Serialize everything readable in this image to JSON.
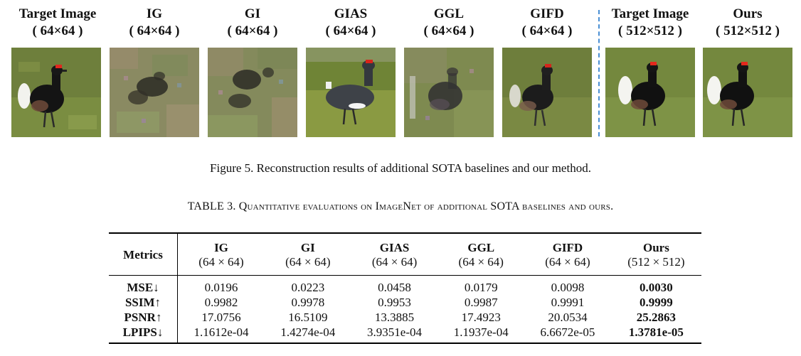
{
  "figure": {
    "columns": [
      {
        "name": "Target Image",
        "size": "( 64×64 )",
        "kind": "target"
      },
      {
        "name": "IG",
        "size": "( 64×64 )",
        "kind": "noisy"
      },
      {
        "name": "GI",
        "size": "( 64×64 )",
        "kind": "noisy"
      },
      {
        "name": "GIAS",
        "size": "( 64×64 )",
        "kind": "gias"
      },
      {
        "name": "GGL",
        "size": "( 64×64 )",
        "kind": "ggl"
      },
      {
        "name": "GIFD",
        "size": "( 64×64 )",
        "kind": "gifd"
      },
      {
        "name": "Target Image",
        "size": "( 512×512 )",
        "kind": "target"
      },
      {
        "name": "Ours",
        "size": "( 512×512 )",
        "kind": "target"
      }
    ],
    "caption": "Figure 5. Reconstruction results of additional SOTA baselines and our method."
  },
  "table": {
    "caption_prefix": "TABLE 3. ",
    "caption_text": "Quantitative evaluations on ImageNet of additional SOTA baselines and ours.",
    "metrics_header": "Metrics",
    "methods": [
      {
        "name": "IG",
        "size": "(64 × 64)"
      },
      {
        "name": "GI",
        "size": "(64 × 64)"
      },
      {
        "name": "GIAS",
        "size": "(64 × 64)"
      },
      {
        "name": "GGL",
        "size": "(64 × 64)"
      },
      {
        "name": "GIFD",
        "size": "(64 × 64)"
      },
      {
        "name": "Ours",
        "size": "(512 × 512)"
      }
    ],
    "rows": [
      {
        "metric": "MSE↓",
        "values": [
          "0.0196",
          "0.0223",
          "0.0458",
          "0.0179",
          "0.0098",
          "0.0030"
        ]
      },
      {
        "metric": "SSIM↑",
        "values": [
          "0.9982",
          "0.9978",
          "0.9953",
          "0.9987",
          "0.9991",
          "0.9999"
        ]
      },
      {
        "metric": "PSNR↑",
        "values": [
          "17.0756",
          "16.5109",
          "13.3885",
          "17.4923",
          "20.0534",
          "25.2863"
        ]
      },
      {
        "metric": "LPIPS↓",
        "values": [
          "1.1612e-04",
          "1.4274e-04",
          "3.9351e-04",
          "1.1937e-04",
          "6.6672e-05",
          "1.3781e-05"
        ]
      }
    ],
    "best_column": 5
  }
}
